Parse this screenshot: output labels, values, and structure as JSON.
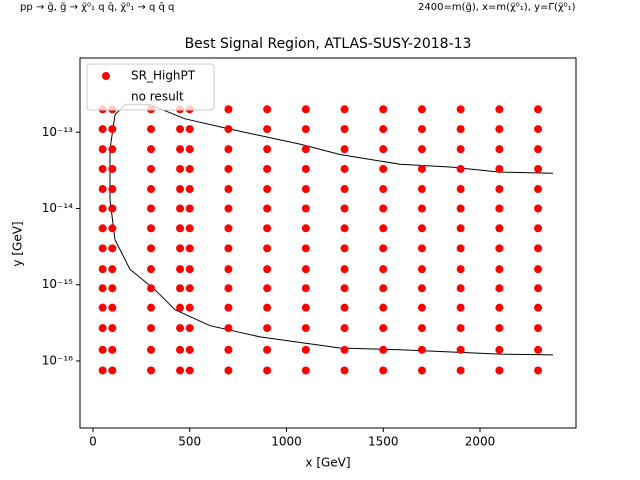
{
  "chart_data": {
    "type": "scatter",
    "title": "Best Signal Region, ATLAS-SUSY-2018-13",
    "annotations": [
      "pp → g̃, g̃ → χ̃⁰₁ q q̄, χ̃⁰₁ → q q̄ q",
      "2400=m(g̃), x=m(χ̃⁰₁), y=Γ(χ̃⁰₁)"
    ],
    "x_label": "x [GeV]",
    "y_label": "y [GeV]",
    "xlim": [
      -67,
      2496
    ],
    "ylim": [
      1.32e-17,
      9.42e-13
    ],
    "log_y": true,
    "xticks": [
      0,
      500,
      1000,
      1500,
      2000
    ],
    "yticks": [
      {
        "value": 1e-13,
        "label": "10⁻¹³"
      },
      {
        "value": 1e-14,
        "label": "10⁻¹⁴"
      },
      {
        "value": 1e-15,
        "label": "10⁻¹⁵"
      },
      {
        "value": 1e-16,
        "label": "10⁻¹⁶"
      }
    ],
    "legend": "upper left",
    "series": [
      {
        "name": "SR_HighPT",
        "color": "#ff0000",
        "x": [
          50,
          100,
          300,
          450,
          500,
          700,
          900,
          1100,
          1300,
          1500,
          1700,
          1900,
          2100,
          2300,
          50,
          100,
          300,
          450,
          500,
          700,
          900,
          1100,
          1300,
          1500,
          1700,
          1900,
          2100,
          2300,
          50,
          100,
          300,
          450,
          500,
          700,
          900,
          1100,
          1300,
          1500,
          1700,
          1900,
          2100,
          2300,
          50,
          100,
          300,
          450,
          500,
          700,
          900,
          1100,
          1300,
          1500,
          1700,
          1900,
          2100,
          2300,
          50,
          100,
          300,
          450,
          500,
          700,
          900,
          1100,
          1300,
          1500,
          1700,
          1900,
          2100,
          2300,
          50,
          100,
          300,
          450,
          500,
          700,
          900,
          1100,
          1300,
          1500,
          1700,
          1900,
          2100,
          2300,
          50,
          100,
          300,
          450,
          500,
          700,
          900,
          1100,
          1300,
          1500,
          1700,
          1900,
          2100,
          2300,
          50,
          100,
          300,
          450,
          500,
          700,
          900,
          1100,
          1300,
          1500,
          1700,
          1900,
          2100,
          2300,
          50,
          100,
          300,
          450,
          500,
          700,
          900,
          1100,
          1300,
          1500,
          1700,
          1900,
          2100,
          2300,
          50,
          100,
          300,
          450,
          500,
          700,
          900,
          1100,
          1300,
          1500,
          1700,
          1900,
          2100,
          2300,
          50,
          100,
          300,
          450,
          500,
          700,
          900,
          1100,
          1300,
          1500,
          1700,
          1900,
          2100,
          2300,
          50,
          100,
          300,
          450,
          500,
          700,
          900,
          1100,
          1300,
          1500,
          1700,
          1900,
          2100,
          2300,
          50,
          100,
          300,
          450,
          500,
          700,
          900,
          1100,
          1300,
          1500,
          1700,
          1900,
          2100,
          2300,
          50,
          100,
          300,
          450,
          500,
          700,
          900,
          1100,
          1300,
          1500,
          1700,
          1900,
          2100,
          2300
        ],
        "values": [
          2e-13,
          2e-13,
          2e-13,
          2e-13,
          2e-13,
          2e-13,
          2e-13,
          2e-13,
          2e-13,
          2e-13,
          2e-13,
          2e-13,
          2e-13,
          2e-13,
          1.1e-13,
          1.1e-13,
          1.1e-13,
          1.1e-13,
          1.1e-13,
          1.1e-13,
          1.1e-13,
          1.1e-13,
          1.1e-13,
          1.1e-13,
          1.1e-13,
          1.1e-13,
          1.1e-13,
          1.1e-13,
          6e-14,
          6e-14,
          6e-14,
          6e-14,
          6e-14,
          6e-14,
          6e-14,
          6e-14,
          6e-14,
          6e-14,
          6e-14,
          6e-14,
          6e-14,
          6e-14,
          3.3e-14,
          3.3e-14,
          3.3e-14,
          3.3e-14,
          3.3e-14,
          3.3e-14,
          3.3e-14,
          3.3e-14,
          3.3e-14,
          3.3e-14,
          3.3e-14,
          3.3e-14,
          3.3e-14,
          3.3e-14,
          1.8e-14,
          1.8e-14,
          1.8e-14,
          1.8e-14,
          1.8e-14,
          1.8e-14,
          1.8e-14,
          1.8e-14,
          1.8e-14,
          1.8e-14,
          1.8e-14,
          1.8e-14,
          1.8e-14,
          1.8e-14,
          1e-14,
          1e-14,
          1e-14,
          1e-14,
          1e-14,
          1e-14,
          1e-14,
          1e-14,
          1e-14,
          1e-14,
          1e-14,
          1e-14,
          1e-14,
          1e-14,
          5.5e-15,
          5.5e-15,
          5.5e-15,
          5.5e-15,
          5.5e-15,
          5.5e-15,
          5.5e-15,
          5.5e-15,
          5.5e-15,
          5.5e-15,
          5.5e-15,
          5.5e-15,
          5.5e-15,
          5.5e-15,
          3e-15,
          3e-15,
          3e-15,
          3e-15,
          3e-15,
          3e-15,
          3e-15,
          3e-15,
          3e-15,
          3e-15,
          3e-15,
          3e-15,
          3e-15,
          3e-15,
          1.6e-15,
          1.6e-15,
          1.6e-15,
          1.6e-15,
          1.6e-15,
          1.6e-15,
          1.6e-15,
          1.6e-15,
          1.6e-15,
          1.6e-15,
          1.6e-15,
          1.6e-15,
          1.6e-15,
          1.6e-15,
          9e-16,
          9e-16,
          9e-16,
          9e-16,
          9e-16,
          9e-16,
          9e-16,
          9e-16,
          9e-16,
          9e-16,
          9e-16,
          9e-16,
          9e-16,
          9e-16,
          5e-16,
          5e-16,
          5e-16,
          5e-16,
          5e-16,
          5e-16,
          5e-16,
          5e-16,
          5e-16,
          5e-16,
          5e-16,
          5e-16,
          5e-16,
          5e-16,
          2.7e-16,
          2.7e-16,
          2.7e-16,
          2.7e-16,
          2.7e-16,
          2.7e-16,
          2.7e-16,
          2.7e-16,
          2.7e-16,
          2.7e-16,
          2.7e-16,
          2.7e-16,
          2.7e-16,
          2.7e-16,
          1.4e-16,
          1.4e-16,
          1.4e-16,
          1.4e-16,
          1.4e-16,
          1.4e-16,
          1.4e-16,
          1.4e-16,
          1.4e-16,
          1.4e-16,
          1.4e-16,
          1.4e-16,
          1.4e-16,
          1.4e-16,
          7.5e-17,
          7.5e-17,
          7.5e-17,
          7.5e-17,
          7.5e-17,
          7.5e-17,
          7.5e-17,
          7.5e-17,
          7.5e-17,
          7.5e-17,
          7.5e-17,
          7.5e-17,
          7.5e-17,
          7.5e-17
        ]
      },
      {
        "name": "no result",
        "color": "#ffffff",
        "x": [],
        "values": []
      }
    ],
    "contour": {
      "color": "#000000",
      "x": [
        2377,
        2103,
        1587,
        1276,
        863,
        605,
        424,
        320,
        191,
        114,
        88,
        88,
        114,
        165,
        295,
        476,
        708,
        1070,
        1276,
        1587,
        1845,
        2103,
        2377
      ],
      "values": [
        1.2e-16,
        1.23e-16,
        1.4e-16,
        1.48e-16,
        2.07e-16,
        2.9e-16,
        4.7e-16,
        8.6e-16,
        1.6e-15,
        3.9e-15,
        1.3e-14,
        6e-14,
        1.7e-13,
        2.3e-13,
        2.3e-13,
        1.5e-13,
        1.1e-13,
        7e-14,
        5.1e-14,
        3.8e-14,
        3.5e-14,
        3e-14,
        2.9e-14
      ]
    }
  }
}
